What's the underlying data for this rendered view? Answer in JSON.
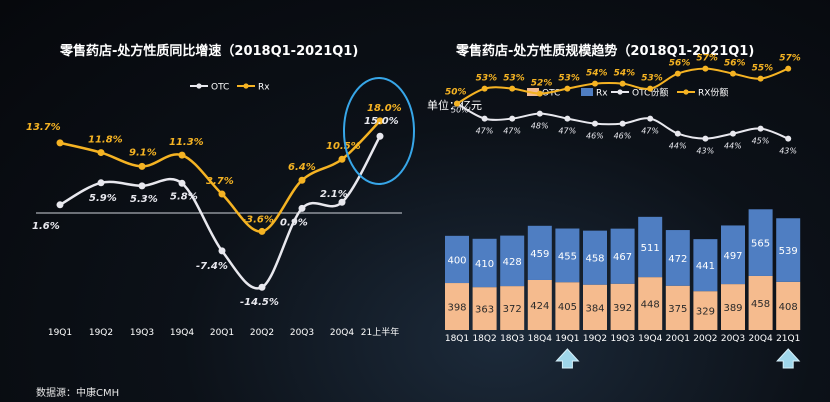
{
  "source": "数据源：中康CMH",
  "chart_data": [
    {
      "type": "line",
      "title": "零售药店-处方性质同比增速（2018Q1-2021Q1)",
      "categories": [
        "19Q1",
        "19Q2",
        "19Q3",
        "19Q4",
        "20Q1",
        "20Q2",
        "20Q3",
        "20Q4",
        "21上半年"
      ],
      "series": [
        {
          "name": "OTC",
          "values": [
            1.6,
            5.9,
            5.3,
            5.8,
            -7.4,
            -14.5,
            0.9,
            2.1,
            15.0
          ],
          "labels": [
            "1.6%",
            "5.9%",
            "5.3%",
            "5.8%",
            "-7.4%",
            "-14.5%",
            "0.9%",
            "2.1%",
            "15.0%"
          ],
          "color": "#e8e8ee"
        },
        {
          "name": "Rx",
          "values": [
            13.7,
            11.8,
            9.1,
            11.3,
            3.7,
            -3.6,
            6.4,
            10.5,
            18.0
          ],
          "labels": [
            "13.7%",
            "11.8%",
            "9.1%",
            "11.3%",
            "3.7%",
            "-3.6%",
            "6.4%",
            "10.5%",
            "18.0%"
          ],
          "color": "#f5b323"
        }
      ],
      "ylim": [
        -17,
        22
      ],
      "legend": "top"
    },
    {
      "type": "bar",
      "title": "零售药店-处方性质规模趋势（2018Q1-2021Q1)",
      "unit": "单位：亿元",
      "categories": [
        "18Q1",
        "18Q2",
        "18Q3",
        "18Q4",
        "19Q1",
        "19Q2",
        "19Q3",
        "19Q4",
        "20Q1",
        "20Q2",
        "20Q3",
        "20Q4",
        "21Q1"
      ],
      "series": [
        {
          "name": "OTC",
          "values": [
            398,
            363,
            372,
            424,
            405,
            384,
            392,
            448,
            375,
            329,
            389,
            458,
            408
          ],
          "color": "#f5bb8e"
        },
        {
          "name": "Rx",
          "values": [
            400,
            410,
            428,
            459,
            455,
            458,
            467,
            511,
            472,
            441,
            497,
            565,
            539
          ],
          "color": "#4f7ec2"
        },
        {
          "name": "OTC份额",
          "values": [
            50,
            47,
            47,
            48,
            47,
            46,
            46,
            47,
            44,
            43,
            44,
            45,
            43
          ],
          "labels": [
            "50%",
            "47%",
            "47%",
            "48%",
            "47%",
            "46%",
            "46%",
            "47%",
            "44%",
            "43%",
            "44%",
            "45%",
            "43%"
          ],
          "color": "#e8e8ee"
        },
        {
          "name": "RX份额",
          "values": [
            50,
            53,
            53,
            52,
            53,
            54,
            54,
            53,
            56,
            57,
            56,
            55,
            57
          ],
          "labels": [
            "50%",
            "53%",
            "53%",
            "52%",
            "53%",
            "54%",
            "54%",
            "53%",
            "56%",
            "57%",
            "56%",
            "55%",
            "57%"
          ],
          "color": "#f5b323"
        }
      ],
      "legend": "top"
    }
  ]
}
